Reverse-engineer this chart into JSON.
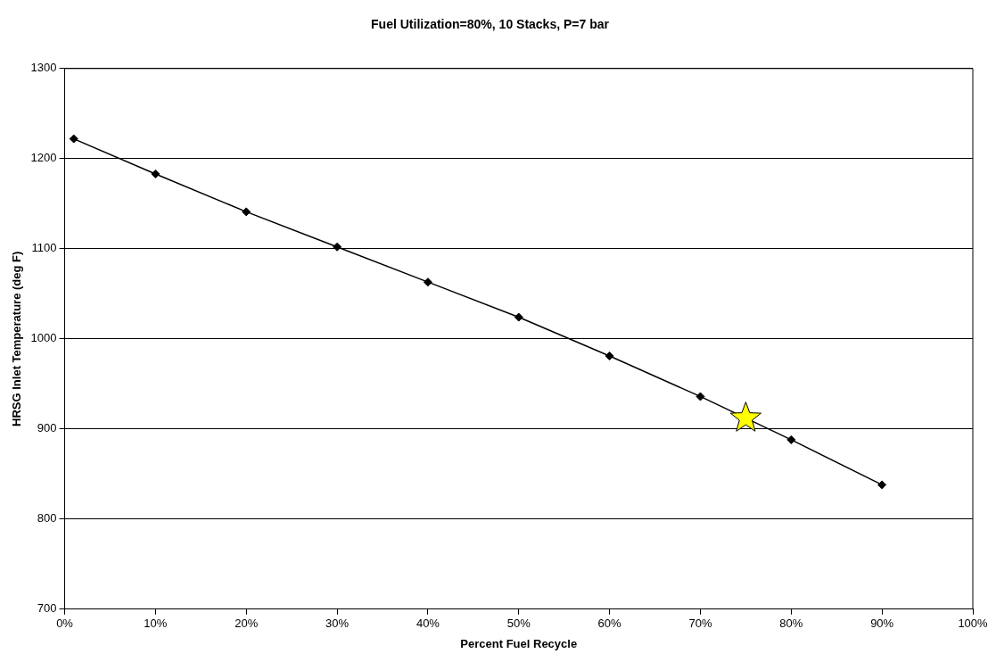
{
  "chart_data": {
    "type": "line",
    "title": "Fuel Utilization=80%, 10 Stacks, P=7 bar",
    "xlabel": "Percent Fuel Recycle",
    "ylabel": "HRSG Inlet Temperature (deg F)",
    "xlim": [
      0,
      100
    ],
    "xticks": [
      {
        "value": 0,
        "label": "0%"
      },
      {
        "value": 10,
        "label": "10%"
      },
      {
        "value": 20,
        "label": "20%"
      },
      {
        "value": 30,
        "label": "30%"
      },
      {
        "value": 40,
        "label": "40%"
      },
      {
        "value": 50,
        "label": "50%"
      },
      {
        "value": 60,
        "label": "60%"
      },
      {
        "value": 70,
        "label": "70%"
      },
      {
        "value": 80,
        "label": "80%"
      },
      {
        "value": 90,
        "label": "90%"
      },
      {
        "value": 100,
        "label": "100%"
      }
    ],
    "ylim": [
      700,
      1300
    ],
    "yticks": [
      700,
      800,
      900,
      1000,
      1100,
      1200,
      1300
    ],
    "grid": "y",
    "legend": false,
    "series": [
      {
        "color": "#000000",
        "marker": "diamond",
        "x": [
          1,
          10,
          20,
          30,
          40,
          50,
          60,
          70,
          80,
          90
        ],
        "values": [
          1222,
          1183,
          1141,
          1102,
          1063,
          1024,
          981,
          936,
          888,
          838
        ]
      },
      {
        "type": "scatter",
        "color": "#ffff00",
        "marker": "star",
        "x": [
          75
        ],
        "values": [
          912
        ]
      }
    ]
  }
}
